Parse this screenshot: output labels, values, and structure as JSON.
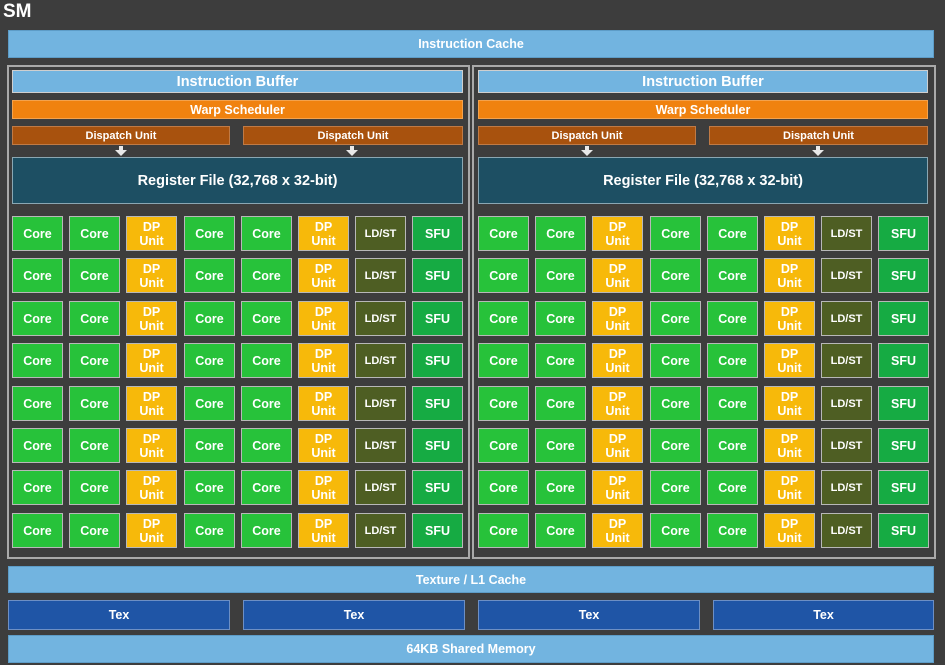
{
  "title": "SM",
  "instruction_cache": "Instruction Cache",
  "partitions": [
    {
      "instruction_buffer": "Instruction Buffer",
      "warp_scheduler": "Warp Scheduler",
      "dispatch_units": [
        "Dispatch Unit",
        "Dispatch Unit"
      ],
      "register_file": "Register File (32,768 x 32-bit)"
    },
    {
      "instruction_buffer": "Instruction Buffer",
      "warp_scheduler": "Warp Scheduler",
      "dispatch_units": [
        "Dispatch Unit",
        "Dispatch Unit"
      ],
      "register_file": "Register File (32,768 x 32-bit)"
    }
  ],
  "unit_labels": {
    "core": "Core",
    "dp_line1": "DP",
    "dp_line2": "Unit",
    "ldst": "LD/ST",
    "sfu": "SFU"
  },
  "grid": {
    "rows": 8,
    "columns": [
      "core",
      "core",
      "dp",
      "core",
      "core",
      "dp",
      "ldst",
      "sfu"
    ]
  },
  "texture_cache": "Texture / L1 Cache",
  "tex_units": [
    "Tex",
    "Tex",
    "Tex",
    "Tex"
  ],
  "shared_memory": "64KB Shared Memory",
  "colors": {
    "background": "#3d3d3d",
    "cache": "#72b4e0",
    "warp_scheduler": "#f0820f",
    "dispatch_unit": "#a8520e",
    "register_file": "#1d4f63",
    "core": "#27c23a",
    "dp_unit": "#f7b90a",
    "ldst": "#4e5e23",
    "sfu": "#16ab43",
    "tex": "#1f55a6"
  }
}
